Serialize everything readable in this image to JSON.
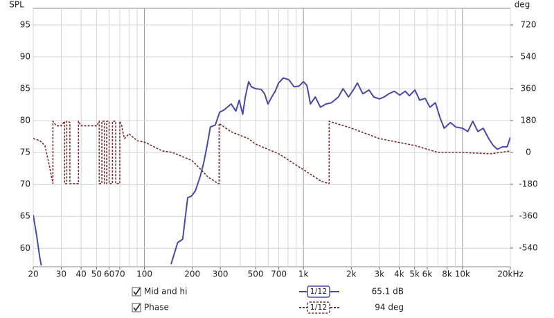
{
  "chart_data": {
    "type": "line",
    "ylabel": "SPL",
    "y2label": "deg",
    "xscale": "log",
    "grid": true,
    "xlim": [
      20,
      20000
    ],
    "xticks": [
      20,
      30,
      40,
      50,
      60,
      70,
      100,
      200,
      300,
      500,
      700,
      {
        "value": 1000,
        "label": "1k"
      },
      {
        "value": 2000,
        "label": "2k"
      },
      {
        "value": 3000,
        "label": "3k"
      },
      {
        "value": 4000,
        "label": "4k"
      },
      {
        "value": 5000,
        "label": "5k"
      },
      {
        "value": 6000,
        "label": "6k"
      },
      {
        "value": 8000,
        "label": "8k"
      },
      {
        "value": 10000,
        "label": "10k"
      },
      {
        "value": 20000,
        "label": "20kHz"
      }
    ],
    "ylim": [
      57.1,
      97.6
    ],
    "yticks": [
      60,
      65,
      70,
      75,
      80,
      85,
      90,
      95
    ],
    "y2lim": [
      -646,
      814
    ],
    "y2ticks": [
      -540,
      -360,
      -180,
      0,
      180,
      360,
      540,
      720
    ],
    "series": [
      {
        "name": "Mid and hi",
        "color": "#4848a8",
        "smoothing": "1/12",
        "readout": "65.1 dB",
        "x": [
          20,
          21,
          22,
          22.5,
          60,
          147,
          162,
          174,
          187,
          198,
          209,
          224,
          236,
          248,
          260,
          279,
          297,
          318,
          351,
          376,
          395,
          415,
          431,
          452,
          471,
          500,
          542,
          570,
          598,
          632,
          664,
          698,
          748,
          810,
          873,
          936,
          1000,
          1051,
          1107,
          1187,
          1279,
          1385,
          1500,
          1657,
          1775,
          1921,
          2057,
          2184,
          2364,
          2585,
          2770,
          3000,
          3214,
          3444,
          3728,
          4035,
          4366,
          4635,
          5019,
          5378,
          5823,
          6238,
          6752,
          7233,
          7672,
          8391,
          9081,
          10000,
          10800,
          11600,
          12500,
          13500,
          14600,
          15600,
          16600,
          17800,
          19100,
          20000
        ],
        "values": [
          65.2,
          62,
          58.5,
          57.3,
          null,
          57.5,
          60.9,
          61.4,
          67.9,
          68.2,
          69,
          71.2,
          73.4,
          76.1,
          79,
          79.3,
          81.3,
          81.7,
          82.6,
          81.5,
          83.2,
          81,
          83.7,
          86.1,
          85.3,
          85,
          84.9,
          84.2,
          82.6,
          83.7,
          84.6,
          85.9,
          86.7,
          86.4,
          85.3,
          85.4,
          86.1,
          85.5,
          82.6,
          83.7,
          82.1,
          82.6,
          82.8,
          83.7,
          85,
          83.7,
          84.8,
          85.9,
          84.2,
          84.8,
          83.7,
          83.4,
          83.7,
          84.2,
          84.6,
          84,
          84.6,
          83.9,
          84.8,
          83.2,
          83.5,
          82.1,
          82.8,
          80.4,
          78.8,
          79.7,
          79,
          78.8,
          78.3,
          79.9,
          78.3,
          78.8,
          77.2,
          76.1,
          75.5,
          75.9,
          75.9,
          77.4
        ]
      },
      {
        "name": "Phase",
        "color": "#7a2a2a",
        "axis": "y2",
        "smoothing": "1/12",
        "readout": "94 deg",
        "x": [
          20,
          22,
          23.7,
          25.3,
          26.6,
          26.6,
          28,
          30,
          31.5,
          31.5,
          32.5,
          32.5,
          34,
          34,
          36,
          38.5,
          38.5,
          40,
          45,
          50,
          52,
          52,
          54,
          54,
          56,
          56,
          58,
          58,
          60,
          60,
          63,
          63,
          66,
          66,
          70,
          70,
          72,
          73,
          75,
          80,
          90,
          100,
          130,
          150,
          200,
          250,
          290,
          295,
          295,
          350,
          450,
          500,
          700,
          1000,
          1300,
          1450,
          1450,
          2000,
          3000,
          5000,
          7000,
          10000,
          15000,
          20000
        ],
        "values": [
          78,
          66,
          39,
          -78,
          -176,
          176,
          150,
          150,
          176,
          -176,
          -176,
          176,
          170,
          -176,
          -176,
          -176,
          176,
          150,
          150,
          150,
          176,
          -176,
          -176,
          176,
          176,
          -176,
          -176,
          176,
          176,
          -176,
          -176,
          176,
          176,
          -176,
          -176,
          176,
          150,
          120,
          78,
          105,
          66,
          58,
          8,
          0,
          -47,
          -137,
          -176,
          -176,
          164,
          117,
          78,
          47,
          -8,
          -98,
          -164,
          -176,
          176,
          137,
          78,
          39,
          0,
          0,
          -8,
          8
        ]
      }
    ]
  }
}
